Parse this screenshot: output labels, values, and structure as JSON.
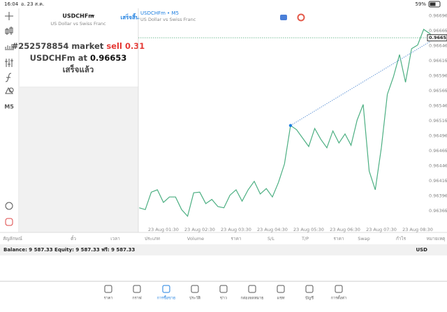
{
  "status_bar": {
    "time": "16:04",
    "date": "อ. 23 ส.ค.",
    "battery": "59%"
  },
  "toolbar": {
    "timeframe": "M5"
  },
  "order_panel": {
    "symbol": "USDCHFm",
    "description": "US Dollar vs Swiss Franc",
    "done_button": "เสร็จสิ้น",
    "order": "#252578854 market",
    "side_volume": "sell 0.31",
    "price_prefix": "USDCHFm at",
    "price": "0.96653",
    "status": "เสร็จแล้ว"
  },
  "chart": {
    "type": "line",
    "title": "USDCHFm • M5",
    "subtitle": "US Dollar vs Swiss Franc",
    "color": "#4caf82",
    "categories": [
      null,
      null,
      null,
      null,
      "23 Aug 01:30",
      null,
      null,
      null,
      null,
      null,
      "23 Aug 02:30",
      null,
      null,
      null,
      null,
      null,
      "23 Aug 03:30",
      null,
      null,
      null,
      null,
      null,
      "23 Aug 04:30",
      null,
      null,
      null,
      null,
      null,
      "23 Aug 05:30",
      null,
      null,
      null,
      null,
      null,
      "23 Aug 06:30",
      null,
      null,
      null,
      null,
      null,
      "23 Aug 07:30",
      null,
      null,
      null,
      null,
      null,
      "23 Aug 08:30",
      null,
      null,
      null
    ],
    "values": [
      0.9637,
      0.96367,
      0.96396,
      0.964,
      0.96379,
      0.96388,
      0.96388,
      0.96367,
      0.96356,
      0.96395,
      0.96396,
      0.96377,
      0.96384,
      0.96372,
      0.9637,
      0.96391,
      0.964,
      0.96381,
      0.964,
      0.96414,
      0.96393,
      0.96402,
      0.96388,
      0.96412,
      0.96443,
      0.96507,
      0.965,
      0.96486,
      0.96472,
      0.96502,
      0.96484,
      0.9647,
      0.96498,
      0.96478,
      0.96493,
      0.96474,
      0.96516,
      0.96542,
      0.96431,
      0.964,
      0.9647,
      0.96559,
      0.96588,
      0.96625,
      0.96579,
      0.96635,
      0.96641,
      0.96667,
      0.9666,
      0.9665
    ],
    "ylim": [
      0.96329,
      0.96702
    ],
    "yticks": [
      {
        "value": 0.9669,
        "label": "0.96690"
      },
      0.96665,
      {
        "value": 0.9664,
        "label": "0.96640"
      },
      0.96615,
      {
        "value": 0.9659,
        "label": "0.96590"
      },
      0.96565,
      {
        "value": 0.9654,
        "label": "0.96540"
      },
      0.96515,
      {
        "value": 0.9649,
        "label": "0.96490"
      },
      0.96465,
      {
        "value": 0.9644,
        "label": "0.96440"
      },
      0.96415,
      {
        "value": 0.9639,
        "label": "0.96390"
      },
      0.96365
    ],
    "last_price": 0.96653
  },
  "table": {
    "columns": [
      "สัญลักษณ์",
      "ตั๋ว",
      "เวลา",
      "ประเภท",
      "Volume",
      "ราคา",
      "S/L",
      "T/P",
      "ราคา",
      "Swap",
      "กำไร",
      "หมายเหตุ"
    ]
  },
  "balance_row": {
    "summary": "Balance: 9 587.33 Equity: 9 587.33 ฟรี: 9 587.33",
    "currency": "USD"
  },
  "tabs": [
    "ราคา",
    "กราฟ",
    "การซื้อขาย",
    "ประวัติ",
    "ข่าว",
    "กล่องจดหมาย",
    "แชท",
    "บัญชี",
    "การตั้งค่า"
  ],
  "active_tab": "การซื้อขาย"
}
